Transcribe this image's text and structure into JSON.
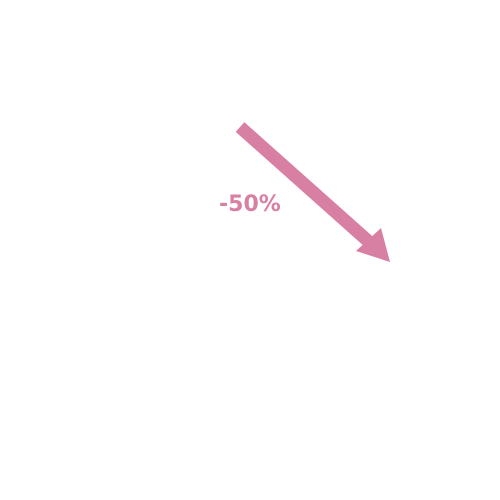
{
  "indicator": {
    "label": "-50%",
    "direction": "down-right",
    "color": "#d87fa4",
    "icon": "arrow-down-right-icon"
  }
}
